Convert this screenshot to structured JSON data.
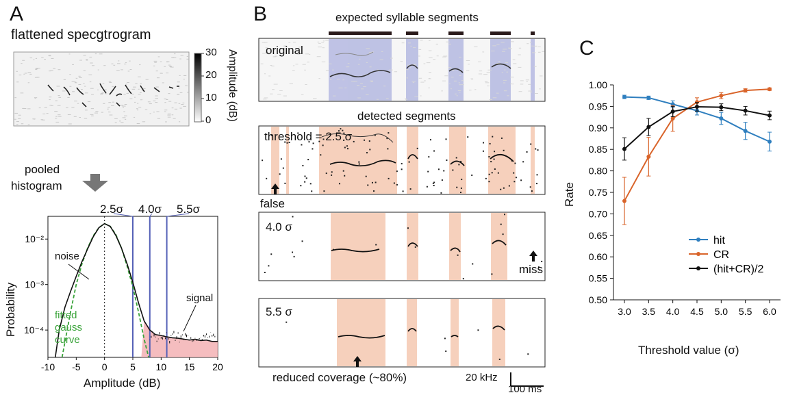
{
  "panel_a": {
    "letter": "A",
    "spec_title": "flattened specgtrogram",
    "colorbar": {
      "ticks": [
        "30",
        "20",
        "10",
        "0"
      ],
      "label": "Amplitude (dB)"
    },
    "arrow_label": [
      "pooled",
      "histogram"
    ],
    "sigma_labels": [
      "2.5σ",
      "4.0σ",
      "5.5σ"
    ],
    "annot": {
      "noise": "noise",
      "fitted": [
        "fitted",
        "gauss",
        "curve"
      ],
      "signal": "signal"
    },
    "chart_data": {
      "type": "line",
      "xlabel": "Amplitude (dB)",
      "ylabel": "Probability",
      "xlim": [
        -10,
        20
      ],
      "ylim_log10": [
        -4.6,
        -1.5
      ],
      "xticks": [
        "-10",
        "-5",
        "0",
        "5",
        "10",
        "15",
        "20"
      ],
      "yticks": [
        "10⁻²",
        "10⁻³",
        "10⁻⁴"
      ],
      "threshold_lines_db": [
        5,
        8,
        11
      ],
      "series": [
        {
          "name": "noise histogram",
          "x": [
            -8.7,
            -8,
            -7,
            -6,
            -5,
            -4,
            -3,
            -2,
            -1,
            0,
            1,
            2,
            3,
            4,
            5,
            6,
            7,
            8,
            9,
            10,
            11,
            12,
            13,
            14,
            15,
            16,
            17,
            18,
            19,
            20
          ],
          "log10p": [
            -4.6,
            -4.0,
            -3.5,
            -3.15,
            -2.82,
            -2.5,
            -2.22,
            -1.95,
            -1.75,
            -1.66,
            -1.72,
            -1.92,
            -2.2,
            -2.55,
            -2.95,
            -3.4,
            -3.8,
            -4.0,
            -4.1,
            -4.12,
            -4.15,
            -4.17,
            -4.18,
            -4.2,
            -4.22,
            -4.2,
            -4.23,
            -4.22,
            -4.25,
            -4.25
          ]
        },
        {
          "name": "fitted gauss curve",
          "x": [
            -7.5,
            -6,
            -5,
            -4,
            -3,
            -2,
            -1,
            0,
            1,
            2,
            3,
            4,
            5,
            6,
            7,
            7.8
          ],
          "log10p": [
            -4.6,
            -3.6,
            -3.0,
            -2.55,
            -2.2,
            -1.93,
            -1.75,
            -1.66,
            -1.72,
            -1.9,
            -2.2,
            -2.6,
            -3.05,
            -3.6,
            -4.2,
            -4.6
          ]
        }
      ]
    }
  },
  "panel_b": {
    "letter": "B",
    "expected_title": "expected syllable segments",
    "original_label": "original",
    "detected_title": "detected segments",
    "thresholds": [
      "threshold = 2.5 σ",
      "4.0 σ",
      "5.5 σ"
    ],
    "false_label": "false",
    "miss_label": "miss",
    "reduced_label": "reduced coverage (~80%)",
    "scale": {
      "freq": "20 kHz",
      "time": "100 ms"
    }
  },
  "panel_c": {
    "letter": "C",
    "chart_data": {
      "type": "line",
      "xlabel": "Threshold value (σ)",
      "ylabel": "Rate",
      "categories": [
        "3.0",
        "3.5",
        "4.0",
        "4.5",
        "5.0",
        "5.5",
        "6.0"
      ],
      "x": [
        3.0,
        3.5,
        4.0,
        4.5,
        5.0,
        5.5,
        6.0
      ],
      "ylim": [
        0.5,
        1.0
      ],
      "yticks": [
        "1.00",
        "0.95",
        "0.90",
        "0.85",
        "0.80",
        "0.75",
        "0.70",
        "0.65",
        "0.60",
        "0.55",
        "0.50"
      ],
      "legend_position": "bottom-right",
      "series": [
        {
          "name": "hit",
          "color": "#2f7fbf",
          "values": [
            0.972,
            0.97,
            0.955,
            0.94,
            0.922,
            0.893,
            0.868
          ],
          "err": [
            0.004,
            0.004,
            0.008,
            0.01,
            0.014,
            0.02,
            0.022
          ]
        },
        {
          "name": "CR",
          "color": "#d9642a",
          "values": [
            0.73,
            0.833,
            0.922,
            0.96,
            0.975,
            0.987,
            0.99
          ],
          "err": [
            0.055,
            0.045,
            0.03,
            0.01,
            0.007,
            0.004,
            0.003
          ]
        },
        {
          "name": "(hit+CR)/2",
          "color": "#111111",
          "values": [
            0.851,
            0.902,
            0.938,
            0.949,
            0.948,
            0.94,
            0.929
          ],
          "err": [
            0.026,
            0.02,
            0.012,
            0.01,
            0.008,
            0.01,
            0.01
          ]
        }
      ]
    }
  }
}
